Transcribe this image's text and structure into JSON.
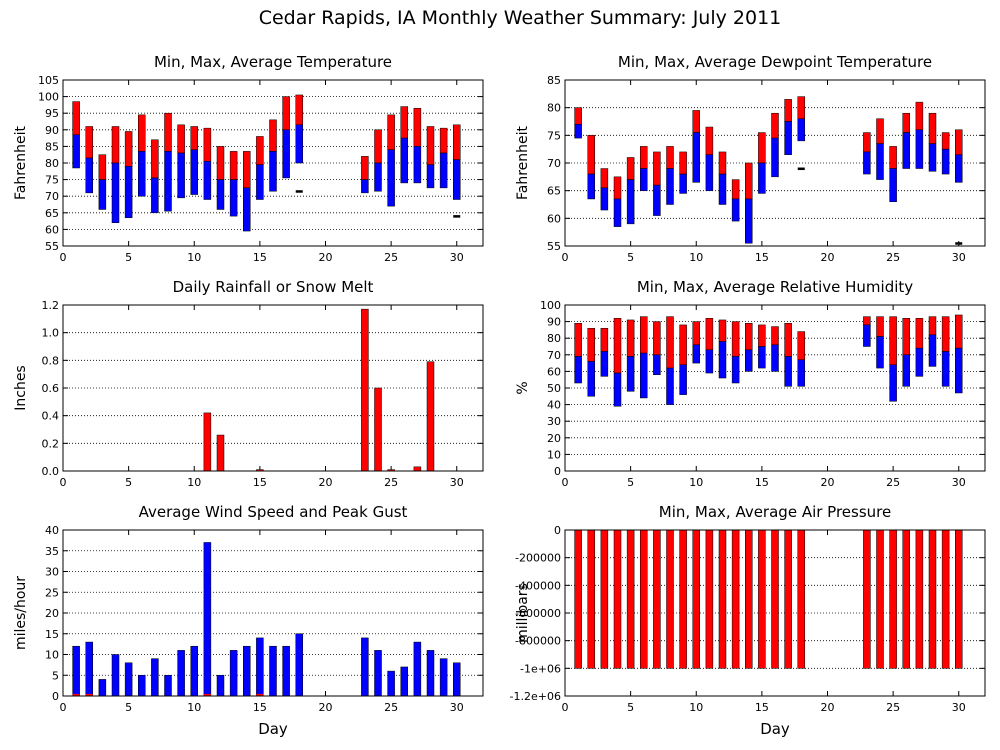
{
  "page": {
    "title": "Cedar Rapids, IA Monthly Weather Summary: July 2011"
  },
  "colors": {
    "upper": "#ff0000",
    "lower": "#0000ff",
    "grid": "#000000"
  },
  "chart_data": [
    {
      "id": "temp",
      "type": "bar",
      "style": "range",
      "title": "Min, Max, Average Temperature",
      "xlabel": "",
      "ylabel": "Fahrenheit",
      "xlim": [
        0,
        32
      ],
      "ylim": [
        55,
        105
      ],
      "xticks": [
        0,
        5,
        10,
        15,
        20,
        25,
        30
      ],
      "yticks": [
        55,
        60,
        65,
        70,
        75,
        80,
        85,
        90,
        95,
        100,
        105
      ],
      "grid": true,
      "days": [
        1,
        2,
        3,
        4,
        5,
        6,
        7,
        8,
        9,
        10,
        11,
        12,
        13,
        14,
        15,
        16,
        17,
        18,
        23,
        24,
        25,
        26,
        27,
        28,
        29,
        30
      ],
      "max": [
        98.5,
        91,
        82.5,
        91,
        89.5,
        94.5,
        87,
        95,
        91.5,
        91,
        90.5,
        85,
        83.5,
        83.5,
        88,
        93,
        100,
        100.5,
        82,
        90,
        94.5,
        97,
        96.5,
        91,
        90.5,
        91.5
      ],
      "avg": [
        88.5,
        81.5,
        75,
        80,
        79,
        83.5,
        75.5,
        83.5,
        83,
        84,
        80.5,
        75,
        75,
        72.5,
        79.5,
        83.5,
        90,
        91.5,
        75,
        80,
        84,
        87.5,
        85,
        79.5,
        83,
        81
      ],
      "min": [
        78.5,
        71,
        66,
        62,
        63.5,
        70,
        65,
        65.5,
        69.5,
        70.5,
        69,
        66,
        64,
        59.5,
        69,
        71.5,
        75.5,
        80,
        71,
        71.5,
        67,
        74,
        74,
        72.5,
        72.5,
        69
      ],
      "markers": [
        {
          "day": 18,
          "value": 71.5
        },
        {
          "day": 30,
          "value": 64
        }
      ]
    },
    {
      "id": "dewpoint",
      "type": "bar",
      "style": "range",
      "title": "Min, Max, Average Dewpoint Temperature",
      "xlabel": "",
      "ylabel": "Fahrenheit",
      "xlim": [
        0,
        32
      ],
      "ylim": [
        55,
        85
      ],
      "xticks": [
        0,
        5,
        10,
        15,
        20,
        25,
        30
      ],
      "yticks": [
        55,
        60,
        65,
        70,
        75,
        80,
        85
      ],
      "grid": true,
      "days": [
        1,
        2,
        3,
        4,
        5,
        6,
        7,
        8,
        9,
        10,
        11,
        12,
        13,
        14,
        15,
        16,
        17,
        18,
        23,
        24,
        25,
        26,
        27,
        28,
        29,
        30
      ],
      "max": [
        80,
        75,
        69,
        67.5,
        71,
        73,
        72,
        73,
        72,
        79.5,
        76.5,
        72,
        67,
        70,
        75.5,
        79,
        81.5,
        82,
        75.5,
        78,
        73,
        79,
        81,
        79,
        75.5,
        76
      ],
      "avg": [
        77,
        68,
        65.5,
        63.5,
        67,
        69,
        66,
        69,
        68,
        75.5,
        71.5,
        68,
        63.5,
        63.5,
        70,
        74.5,
        77.5,
        78,
        72,
        73.5,
        69,
        75.5,
        76,
        73.5,
        72.5,
        71.5
      ],
      "min": [
        74.5,
        63.5,
        61.5,
        58.5,
        59,
        65,
        60.5,
        62.5,
        64.5,
        66.5,
        65,
        62.5,
        59.5,
        55.5,
        64.5,
        67.5,
        71.5,
        74,
        68,
        67,
        63,
        69,
        69,
        68.5,
        68,
        66.5
      ],
      "markers": [
        {
          "day": 18,
          "value": 69
        },
        {
          "day": 30,
          "value": 55.5
        }
      ]
    },
    {
      "id": "rain",
      "type": "bar",
      "style": "single",
      "title": "Daily Rainfall or Snow Melt",
      "xlabel": "",
      "ylabel": "Inches",
      "xlim": [
        0,
        32
      ],
      "ylim": [
        0,
        1.2
      ],
      "xticks": [
        0,
        5,
        10,
        15,
        20,
        25,
        30
      ],
      "yticks": [
        0.0,
        0.2,
        0.4,
        0.6,
        0.8,
        1.0,
        1.2
      ],
      "ytick_labels": [
        "0.0",
        "0.2",
        "0.4",
        "0.6",
        "0.8",
        "1.0",
        "1.2"
      ],
      "grid": true,
      "days": [
        11,
        12,
        15,
        23,
        24,
        25,
        27,
        28
      ],
      "values": [
        0.42,
        0.26,
        0.01,
        1.17,
        0.6,
        0.01,
        0.03,
        0.79
      ]
    },
    {
      "id": "humidity",
      "type": "bar",
      "style": "range",
      "title": "Min, Max, Average Relative Humidity",
      "xlabel": "",
      "ylabel": "%",
      "xlim": [
        0,
        32
      ],
      "ylim": [
        0,
        100
      ],
      "xticks": [
        0,
        5,
        10,
        15,
        20,
        25,
        30
      ],
      "yticks": [
        0,
        10,
        20,
        30,
        40,
        50,
        60,
        70,
        80,
        90,
        100
      ],
      "grid": true,
      "days": [
        1,
        2,
        3,
        4,
        5,
        6,
        7,
        8,
        9,
        10,
        11,
        12,
        13,
        14,
        15,
        16,
        17,
        18,
        23,
        24,
        25,
        26,
        27,
        28,
        29,
        30
      ],
      "max": [
        89,
        86,
        86,
        92,
        91,
        93,
        90,
        93,
        88,
        90,
        92,
        91,
        90,
        89,
        88,
        87,
        89,
        84,
        93,
        93,
        93,
        92,
        92,
        93,
        93,
        94
      ],
      "avg": [
        69,
        66,
        72,
        59,
        69,
        71,
        70,
        62,
        64,
        76,
        73,
        78,
        69,
        73,
        75,
        76,
        69,
        67,
        88,
        81,
        64,
        70,
        74,
        82,
        72,
        74
      ],
      "min": [
        53,
        45,
        57,
        39,
        48,
        44,
        58,
        40,
        46,
        65,
        59,
        56,
        53,
        60,
        62,
        60,
        51,
        51,
        75,
        62,
        42,
        51,
        57,
        63,
        51,
        47
      ]
    },
    {
      "id": "wind",
      "type": "bar",
      "style": "pair",
      "title": "Average Wind Speed and Peak Gust",
      "xlabel": "Day",
      "ylabel": "miles/hour",
      "xlim": [
        0,
        32
      ],
      "ylim": [
        0,
        40
      ],
      "xticks": [
        0,
        5,
        10,
        15,
        20,
        25,
        30
      ],
      "yticks": [
        0,
        5,
        10,
        15,
        20,
        25,
        30,
        35,
        40
      ],
      "grid": true,
      "days": [
        1,
        2,
        3,
        4,
        5,
        6,
        7,
        8,
        9,
        10,
        11,
        12,
        13,
        14,
        15,
        16,
        17,
        18,
        23,
        24,
        25,
        26,
        27,
        28,
        29,
        30
      ],
      "peak": [
        12,
        13,
        4,
        10,
        8,
        5,
        9,
        5,
        11,
        12,
        37,
        5,
        11,
        12,
        14,
        12,
        12,
        15,
        14,
        11,
        6,
        7,
        13,
        11,
        9,
        8
      ],
      "avg": [
        0.5,
        0.5,
        0,
        0,
        0,
        0,
        0,
        0,
        0,
        0,
        0.5,
        0,
        0,
        0,
        0.5,
        0,
        0,
        0,
        0,
        0,
        0,
        0,
        0,
        0,
        0,
        0
      ]
    },
    {
      "id": "pressure",
      "type": "bar",
      "style": "single",
      "title": "Min, Max, Average Air Pressure",
      "xlabel": "Day",
      "ylabel": "millibars",
      "xlim": [
        0,
        32
      ],
      "ylim": [
        -1200000,
        0
      ],
      "xticks": [
        0,
        5,
        10,
        15,
        20,
        25,
        30
      ],
      "yticks": [
        0,
        -200000,
        -400000,
        -600000,
        -800000,
        -1000000,
        -1200000
      ],
      "ytick_labels": [
        "0",
        "-200000",
        "-400000",
        "-600000",
        "-800000",
        "-1e+06",
        "-1.2e+06"
      ],
      "grid": true,
      "days": [
        1,
        2,
        3,
        4,
        5,
        6,
        7,
        8,
        9,
        10,
        11,
        12,
        13,
        14,
        15,
        16,
        17,
        18,
        23,
        24,
        25,
        26,
        27,
        28,
        29,
        30
      ],
      "values": [
        -1000000,
        -1000000,
        -1000000,
        -1000000,
        -1000000,
        -1000000,
        -1000000,
        -1000000,
        -1000000,
        -1000000,
        -1000000,
        -1000000,
        -1000000,
        -1000000,
        -1000000,
        -1000000,
        -1000000,
        -1000000,
        -1000000,
        -1000000,
        -1000000,
        -1000000,
        -1000000,
        -1000000,
        -1000000,
        -1000000
      ]
    }
  ]
}
